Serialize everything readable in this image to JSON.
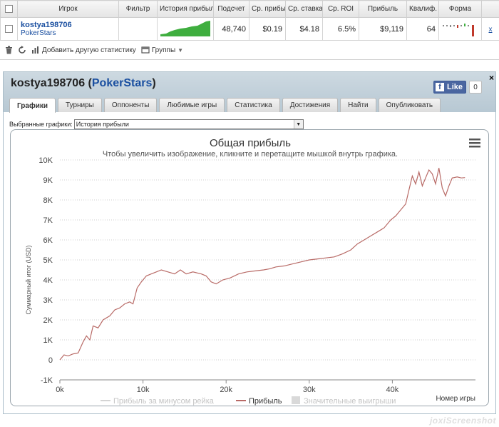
{
  "stats_table": {
    "headers": [
      "Игрок",
      "Фильтр",
      "История прибыли",
      "Подсчет",
      "Ср. прибыль",
      "Ср. ставка",
      "Ср. ROI",
      "Прибыль",
      "Квалиф.",
      "Форма"
    ],
    "row": {
      "player_name": "kostya198706",
      "site": "PokerStars",
      "filter": "",
      "hands": "48,740",
      "avg_profit": "$0.19",
      "avg_stake": "$4.18",
      "avg_roi": "6.5%",
      "profit": "$9,119",
      "qualification": "64",
      "remove": "x"
    }
  },
  "toolbar": {
    "add_stat_label": "Добавить другую статистику",
    "groups_label": "Группы"
  },
  "panel": {
    "player_name": "kostya198706",
    "site": "PokerStars",
    "title_open": " (",
    "title_close": ")",
    "close": "×",
    "fb_like_label": "Like",
    "fb_count": "0",
    "tabs": [
      "Графики",
      "Турниры",
      "Оппоненты",
      "Любимые игры",
      "Статистика",
      "Достижения",
      "Найти",
      "Опубликовать"
    ],
    "selected_graphs_label": "Выбранные графики:",
    "selected_graph_value": "История прибыли"
  },
  "chart_data": {
    "type": "line",
    "title": "Общая прибыль",
    "subtitle": "Чтобы увеличить изображение, кликните и перетащите мышкой внутрь графика.",
    "ylabel": "Суммарный итог (USD)",
    "xlabel": "Номер игры",
    "xlim": [
      0,
      50000
    ],
    "ylim": [
      -1000,
      10000
    ],
    "x_ticks": [
      0,
      10000,
      20000,
      30000,
      40000
    ],
    "x_tick_labels": [
      "0k",
      "10k",
      "20k",
      "30k",
      "40k"
    ],
    "y_ticks": [
      -1000,
      0,
      1000,
      2000,
      3000,
      4000,
      5000,
      6000,
      7000,
      8000,
      9000,
      10000
    ],
    "y_tick_labels": [
      "-1K",
      "0",
      "1K",
      "2K",
      "3K",
      "4K",
      "5K",
      "6K",
      "7K",
      "8K",
      "9K",
      "10K"
    ],
    "grid": true,
    "legend_position": "bottom",
    "legend": [
      "Прибыль за минусом рейка",
      "Прибыль",
      "Значительные выигрыши"
    ],
    "series": [
      {
        "name": "Прибыль",
        "color": "#b86a66",
        "points": [
          [
            0,
            0
          ],
          [
            500,
            250
          ],
          [
            1000,
            200
          ],
          [
            1600,
            300
          ],
          [
            2200,
            350
          ],
          [
            2800,
            900
          ],
          [
            3200,
            1200
          ],
          [
            3600,
            1000
          ],
          [
            4000,
            1700
          ],
          [
            4600,
            1600
          ],
          [
            5200,
            2000
          ],
          [
            6000,
            2200
          ],
          [
            6600,
            2500
          ],
          [
            7200,
            2600
          ],
          [
            7800,
            2800
          ],
          [
            8400,
            2900
          ],
          [
            8800,
            2800
          ],
          [
            9300,
            3600
          ],
          [
            9800,
            3900
          ],
          [
            10400,
            4200
          ],
          [
            11000,
            4300
          ],
          [
            11600,
            4400
          ],
          [
            12200,
            4500
          ],
          [
            13000,
            4400
          ],
          [
            13800,
            4300
          ],
          [
            14500,
            4500
          ],
          [
            15200,
            4300
          ],
          [
            16000,
            4400
          ],
          [
            17000,
            4300
          ],
          [
            17600,
            4200
          ],
          [
            18200,
            3900
          ],
          [
            18800,
            3800
          ],
          [
            19600,
            4000
          ],
          [
            20500,
            4100
          ],
          [
            21500,
            4300
          ],
          [
            22500,
            4400
          ],
          [
            23500,
            4450
          ],
          [
            24500,
            4500
          ],
          [
            25200,
            4550
          ],
          [
            26000,
            4650
          ],
          [
            27000,
            4700
          ],
          [
            28000,
            4800
          ],
          [
            29000,
            4900
          ],
          [
            30000,
            5000
          ],
          [
            31000,
            5050
          ],
          [
            32000,
            5100
          ],
          [
            33000,
            5150
          ],
          [
            34000,
            5300
          ],
          [
            35000,
            5500
          ],
          [
            35800,
            5800
          ],
          [
            36600,
            6000
          ],
          [
            37400,
            6200
          ],
          [
            38200,
            6400
          ],
          [
            39000,
            6600
          ],
          [
            39800,
            7000
          ],
          [
            40400,
            7200
          ],
          [
            41000,
            7500
          ],
          [
            41600,
            7800
          ],
          [
            42000,
            8500
          ],
          [
            42400,
            9200
          ],
          [
            42800,
            8800
          ],
          [
            43200,
            9400
          ],
          [
            43600,
            8700
          ],
          [
            44000,
            9100
          ],
          [
            44400,
            9500
          ],
          [
            44800,
            9300
          ],
          [
            45200,
            8800
          ],
          [
            45600,
            9600
          ],
          [
            46000,
            8600
          ],
          [
            46400,
            8200
          ],
          [
            46800,
            8700
          ],
          [
            47200,
            9100
          ],
          [
            47800,
            9150
          ],
          [
            48300,
            9100
          ],
          [
            48740,
            9119
          ]
        ]
      }
    ]
  },
  "chart_menu_icon": "hamburger-menu-icon",
  "watermark": "joxiScreenshot"
}
